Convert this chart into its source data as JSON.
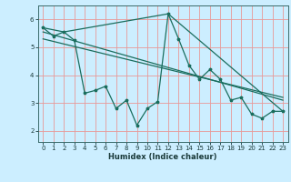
{
  "xlabel": "Humidex (Indice chaleur)",
  "background_color": "#cceeff",
  "grid_color": "#e89898",
  "line_color": "#1a6e5e",
  "xlim": [
    -0.5,
    23.5
  ],
  "ylim": [
    1.6,
    6.5
  ],
  "xticks": [
    0,
    1,
    2,
    3,
    4,
    5,
    6,
    7,
    8,
    9,
    10,
    11,
    12,
    13,
    14,
    15,
    16,
    17,
    18,
    19,
    20,
    21,
    22,
    23
  ],
  "yticks": [
    2,
    3,
    4,
    5,
    6
  ],
  "series1_x": [
    0,
    1,
    2,
    3,
    4,
    5,
    6,
    7,
    8,
    9,
    10,
    11,
    12,
    13,
    14,
    15,
    16,
    17,
    18,
    19,
    20,
    21,
    22,
    23
  ],
  "series1_y": [
    5.7,
    5.4,
    5.55,
    5.25,
    3.35,
    3.45,
    3.6,
    2.8,
    3.1,
    2.2,
    2.8,
    3.05,
    6.2,
    5.3,
    4.35,
    3.85,
    4.2,
    3.85,
    3.1,
    3.2,
    2.6,
    2.45,
    2.7,
    2.7
  ],
  "series2_x": [
    0,
    2,
    12,
    23
  ],
  "series2_y": [
    5.7,
    5.55,
    6.2,
    2.7
  ],
  "series3_x": [
    0,
    23
  ],
  "series3_y": [
    5.55,
    3.1
  ],
  "series4_x": [
    0,
    23
  ],
  "series4_y": [
    5.3,
    3.2
  ],
  "tick_fontsize": 5.0,
  "xlabel_fontsize": 6.0
}
